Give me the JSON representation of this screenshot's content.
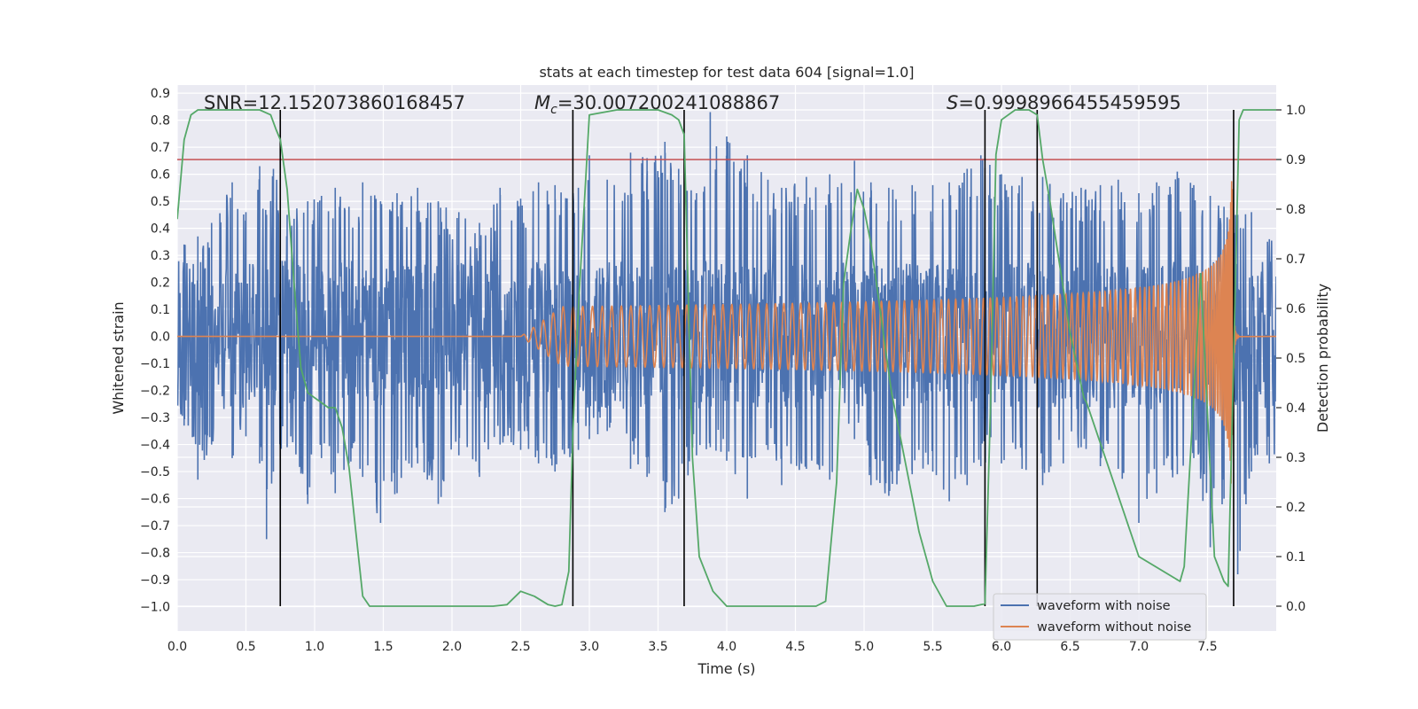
{
  "chart_data": {
    "type": "line",
    "title": "stats at each timestep for test data 604 [signal=1.0]",
    "xlabel": "Time (s)",
    "ylabel": "Whitened strain",
    "y2label": "Detection probability",
    "xlim": [
      0.0,
      8.0
    ],
    "ylim": [
      -1.09,
      0.93
    ],
    "y2lim": [
      -0.05,
      1.05
    ],
    "xticks": [
      "0.0",
      "0.5",
      "1.0",
      "1.5",
      "2.0",
      "2.5",
      "3.0",
      "3.5",
      "4.0",
      "4.5",
      "5.0",
      "5.5",
      "6.0",
      "6.5",
      "7.0",
      "7.5"
    ],
    "yticks": [
      "0.9",
      "0.8",
      "0.7",
      "0.6",
      "0.5",
      "0.4",
      "0.3",
      "0.2",
      "0.1",
      "0.0",
      "−0.1",
      "−0.2",
      "−0.3",
      "−0.4",
      "−0.5",
      "−0.6",
      "−0.7",
      "−0.8",
      "−0.9",
      "−1.0"
    ],
    "y2ticks": [
      "1.0",
      "0.9",
      "0.8",
      "0.7",
      "0.6",
      "0.5",
      "0.4",
      "0.3",
      "0.2",
      "0.1",
      "0.0"
    ],
    "grid": true,
    "legend_position": "lower-right",
    "annotations": {
      "snr": "SNR=12.152073860168457",
      "mc_prefix": "M",
      "mc_sub": "c",
      "mc_value": "=30.007200241088867",
      "s_prefix": "S",
      "s_value": "=0.9998966455459595"
    },
    "threshold": {
      "value": 0.9,
      "axis": "y2",
      "color": "#c44e52"
    },
    "vertical_lines": [
      0.75,
      2.88,
      3.69,
      5.88,
      6.26,
      7.69
    ],
    "noise_envelope": {
      "name": "waveform with noise",
      "color": "#4c72b0",
      "dense_band": [
        -0.27,
        0.28
      ],
      "spikes": [
        [
          0.05,
          0.34,
          -0.33
        ],
        [
          0.15,
          0.37,
          -0.53
        ],
        [
          0.25,
          0.42,
          -0.4
        ],
        [
          0.4,
          0.57,
          -0.45
        ],
        [
          0.5,
          0.46,
          -0.37
        ],
        [
          0.6,
          0.63,
          -0.47
        ],
        [
          0.65,
          0.45,
          -0.75
        ],
        [
          0.7,
          0.62,
          -0.5
        ],
        [
          0.8,
          0.45,
          -0.41
        ],
        [
          0.95,
          0.5,
          -0.62
        ],
        [
          1.05,
          0.52,
          -0.45
        ],
        [
          1.15,
          0.55,
          -0.58
        ],
        [
          1.25,
          0.48,
          -0.47
        ],
        [
          1.35,
          0.57,
          -0.52
        ],
        [
          1.48,
          0.5,
          -0.69
        ],
        [
          1.6,
          0.53,
          -0.58
        ],
        [
          1.75,
          0.55,
          -0.47
        ],
        [
          1.9,
          0.5,
          -0.62
        ],
        [
          2.05,
          0.46,
          -0.44
        ],
        [
          2.2,
          0.42,
          -0.52
        ],
        [
          2.35,
          0.55,
          -0.4
        ],
        [
          2.5,
          0.51,
          -0.42
        ],
        [
          2.63,
          0.57,
          -0.47
        ],
        [
          2.75,
          0.56,
          -0.5
        ],
        [
          2.92,
          0.55,
          -0.42
        ],
        [
          3.0,
          0.67,
          -0.38
        ],
        [
          3.13,
          0.58,
          -0.35
        ],
        [
          3.3,
          0.68,
          -0.49
        ],
        [
          3.42,
          0.66,
          -0.52
        ],
        [
          3.55,
          0.72,
          -0.65
        ],
        [
          3.65,
          0.62,
          -0.6
        ],
        [
          3.78,
          0.53,
          -0.44
        ],
        [
          3.88,
          0.83,
          -0.41
        ],
        [
          4.0,
          0.74,
          -0.46
        ],
        [
          4.15,
          0.67,
          -0.6
        ],
        [
          4.3,
          0.58,
          -0.42
        ],
        [
          4.4,
          0.55,
          -0.55
        ],
        [
          4.58,
          0.59,
          -0.49
        ],
        [
          4.75,
          0.6,
          -0.53
        ],
        [
          4.93,
          0.65,
          -0.38
        ],
        [
          5.05,
          0.57,
          -0.55
        ],
        [
          5.18,
          0.55,
          -0.59
        ],
        [
          5.35,
          0.56,
          -0.51
        ],
        [
          5.5,
          0.56,
          -0.5
        ],
        [
          5.62,
          0.57,
          -0.61
        ],
        [
          5.75,
          0.62,
          -0.55
        ],
        [
          5.85,
          0.67,
          -0.48
        ],
        [
          6.0,
          0.6,
          -0.47
        ],
        [
          6.15,
          0.59,
          -0.49
        ],
        [
          6.3,
          0.59,
          -0.55
        ],
        [
          6.45,
          0.53,
          -0.47
        ],
        [
          6.58,
          0.55,
          -0.41
        ],
        [
          6.72,
          0.56,
          -0.48
        ],
        [
          6.85,
          0.58,
          -0.49
        ],
        [
          7.0,
          0.53,
          -0.69
        ],
        [
          7.13,
          0.57,
          -0.58
        ],
        [
          7.28,
          0.61,
          -0.51
        ],
        [
          7.4,
          0.56,
          -0.45
        ],
        [
          7.52,
          0.52,
          -0.78
        ],
        [
          7.62,
          0.48,
          -0.6
        ],
        [
          7.72,
          0.45,
          -0.88
        ],
        [
          7.82,
          0.46,
          -0.5
        ],
        [
          7.95,
          0.36,
          -0.47
        ]
      ]
    },
    "chirp": {
      "name": "waveform without noise",
      "color": "#dd8452",
      "start": 2.5,
      "merger": 7.68,
      "peak_amplitude": 0.65
    },
    "probability": {
      "name": "detection probability",
      "color": "#55a868",
      "axis": "y2",
      "x": [
        0.0,
        0.05,
        0.1,
        0.15,
        0.2,
        0.3,
        0.4,
        0.5,
        0.6,
        0.68,
        0.72,
        0.75,
        0.8,
        0.85,
        0.9,
        0.95,
        1.0,
        1.05,
        1.1,
        1.15,
        1.2,
        1.25,
        1.3,
        1.35,
        1.4,
        1.5,
        2.0,
        2.3,
        2.4,
        2.5,
        2.6,
        2.7,
        2.75,
        2.8,
        2.85,
        2.88,
        2.92,
        3.0,
        3.2,
        3.5,
        3.6,
        3.65,
        3.69,
        3.75,
        3.8,
        3.9,
        4.0,
        4.5,
        4.65,
        4.72,
        4.8,
        4.85,
        4.9,
        4.95,
        5.0,
        5.05,
        5.2,
        5.4,
        5.5,
        5.6,
        5.7,
        5.8,
        5.88,
        5.92,
        5.96,
        6.0,
        6.1,
        6.2,
        6.26,
        6.3,
        6.35,
        6.5,
        6.6,
        6.62,
        7.0,
        7.3,
        7.33,
        7.45,
        7.55,
        7.62,
        7.65,
        7.69,
        7.73,
        7.76,
        7.8,
        7.9,
        8.0
      ],
      "y": [
        0.78,
        0.94,
        0.99,
        1.0,
        1.0,
        1.0,
        1.0,
        1.0,
        1.0,
        0.99,
        0.96,
        0.94,
        0.84,
        0.65,
        0.48,
        0.43,
        0.42,
        0.41,
        0.4,
        0.4,
        0.36,
        0.28,
        0.15,
        0.02,
        0.0,
        0.0,
        0.0,
        0.0,
        0.003,
        0.03,
        0.02,
        0.003,
        0.0,
        0.003,
        0.07,
        0.35,
        0.6,
        0.99,
        1.0,
        1.0,
        0.99,
        0.98,
        0.95,
        0.3,
        0.1,
        0.03,
        0.0,
        0.0,
        0.0,
        0.01,
        0.25,
        0.65,
        0.75,
        0.84,
        0.8,
        0.73,
        0.43,
        0.15,
        0.05,
        0.0,
        0.0,
        0.0,
        0.005,
        0.4,
        0.91,
        0.98,
        1.0,
        1.0,
        0.99,
        0.9,
        0.82,
        0.55,
        0.42,
        0.41,
        0.1,
        0.05,
        0.08,
        0.67,
        0.1,
        0.05,
        0.04,
        0.5,
        0.98,
        1.0,
        1.0,
        1.0,
        1.0
      ]
    }
  }
}
